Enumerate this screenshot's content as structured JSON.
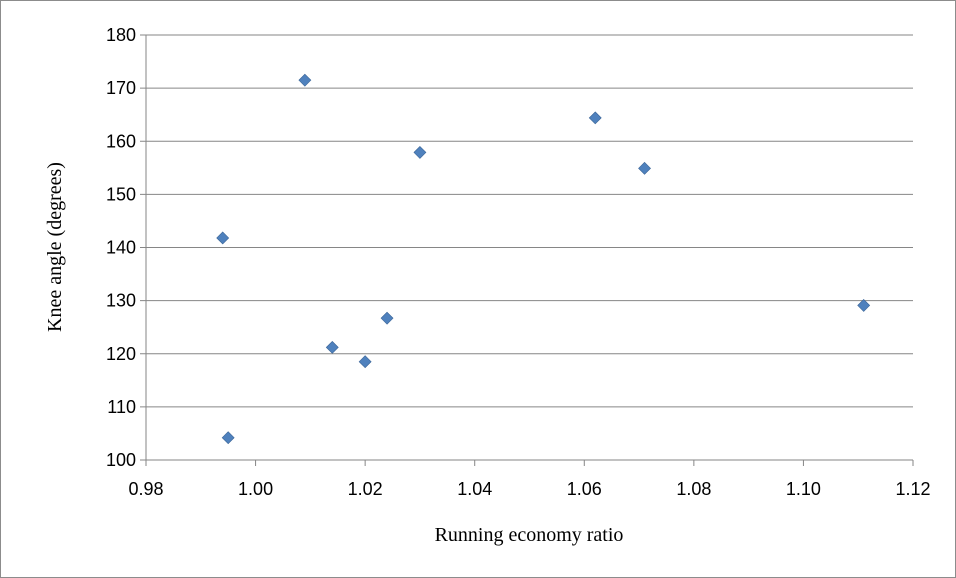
{
  "chart_data": {
    "type": "scatter",
    "title": "",
    "xlabel": "Running economy ratio",
    "ylabel": "Knee angle (degrees)",
    "xlim": [
      0.98,
      1.12
    ],
    "ylim": [
      100,
      180
    ],
    "x_ticks": [
      "0.98",
      "1.00",
      "1.02",
      "1.04",
      "1.06",
      "1.08",
      "1.10",
      "1.12"
    ],
    "y_ticks": [
      "100",
      "110",
      "120",
      "130",
      "140",
      "150",
      "160",
      "170",
      "180"
    ],
    "grid": "horizontal",
    "marker_color": "#4f81bd",
    "marker_shape": "diamond",
    "points": [
      {
        "x": 0.994,
        "y": 141.8
      },
      {
        "x": 0.995,
        "y": 104.2
      },
      {
        "x": 1.009,
        "y": 171.5
      },
      {
        "x": 1.014,
        "y": 121.2
      },
      {
        "x": 1.02,
        "y": 118.5
      },
      {
        "x": 1.024,
        "y": 126.7
      },
      {
        "x": 1.03,
        "y": 157.9
      },
      {
        "x": 1.062,
        "y": 164.4
      },
      {
        "x": 1.071,
        "y": 154.9
      },
      {
        "x": 1.111,
        "y": 129.1
      }
    ]
  }
}
